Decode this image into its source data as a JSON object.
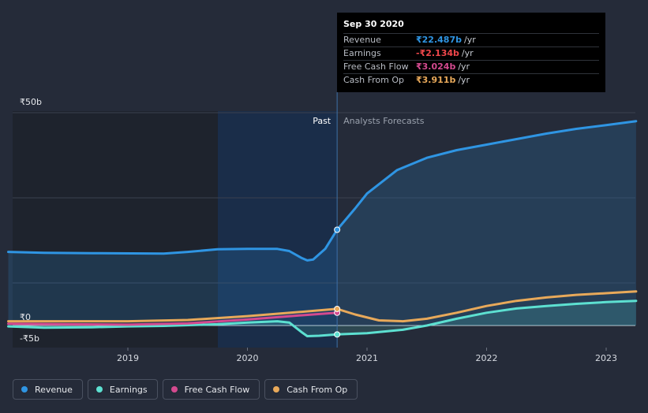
{
  "tooltip": {
    "date": "Sep 30 2020",
    "rows": [
      {
        "name": "Revenue",
        "value": "₹22.487b",
        "unit": "/yr",
        "color": "#2f95e3"
      },
      {
        "name": "Earnings",
        "value": "-₹2.134b",
        "unit": "/yr",
        "color": "#f0474b"
      },
      {
        "name": "Free Cash Flow",
        "value": "₹3.024b",
        "unit": "/yr",
        "color": "#d44a8f"
      },
      {
        "name": "Cash From Op",
        "value": "₹3.911b",
        "unit": "/yr",
        "color": "#e8a95a"
      }
    ]
  },
  "labels": {
    "past": "Past",
    "forecast": "Analysts Forecasts"
  },
  "legend": [
    {
      "name": "Revenue",
      "color": "#2f95e3"
    },
    {
      "name": "Earnings",
      "color": "#5de0d1"
    },
    {
      "name": "Free Cash Flow",
      "color": "#d44a8f"
    },
    {
      "name": "Cash From Op",
      "color": "#e8a95a"
    }
  ],
  "chart_data": {
    "type": "line",
    "ylim": [
      -5,
      50
    ],
    "y_ticks": [
      {
        "value": 50,
        "label": "₹50b"
      },
      {
        "value": 0,
        "label": "₹0"
      },
      {
        "value": -5,
        "label": "-₹5b"
      }
    ],
    "x_ticks": [
      {
        "value": 2019,
        "label": "2019"
      },
      {
        "value": 2020,
        "label": "2020"
      },
      {
        "value": 2021,
        "label": "2021"
      },
      {
        "value": 2022,
        "label": "2022"
      },
      {
        "value": 2023,
        "label": "2023"
      }
    ],
    "xlim": [
      2017.8,
      2023.25
    ],
    "forecast_start": 2020.75,
    "series": [
      {
        "name": "Revenue",
        "color": "#2f95e3",
        "fill": true,
        "points": [
          [
            2018.0,
            17.3
          ],
          [
            2018.3,
            17.1
          ],
          [
            2018.7,
            17.0
          ],
          [
            2019.3,
            16.9
          ],
          [
            2019.5,
            17.3
          ],
          [
            2019.75,
            17.9
          ],
          [
            2020.0,
            18.0
          ],
          [
            2020.25,
            18.0
          ],
          [
            2020.35,
            17.5
          ],
          [
            2020.45,
            15.9
          ],
          [
            2020.5,
            15.3
          ],
          [
            2020.55,
            15.5
          ],
          [
            2020.65,
            18.0
          ],
          [
            2020.75,
            22.5
          ],
          [
            2020.9,
            27.5
          ],
          [
            2021.0,
            31.0
          ],
          [
            2021.25,
            36.5
          ],
          [
            2021.5,
            39.4
          ],
          [
            2021.75,
            41.2
          ],
          [
            2022.0,
            42.5
          ],
          [
            2022.25,
            43.8
          ],
          [
            2022.5,
            45.1
          ],
          [
            2022.75,
            46.2
          ],
          [
            2023.0,
            47.1
          ],
          [
            2023.25,
            48.0
          ]
        ]
      },
      {
        "name": "Earnings",
        "color": "#5de0d1",
        "fill": true,
        "points": [
          [
            2018.0,
            -0.2
          ],
          [
            2018.3,
            -0.5
          ],
          [
            2018.7,
            -0.4
          ],
          [
            2019.0,
            -0.2
          ],
          [
            2019.3,
            -0.1
          ],
          [
            2019.75,
            0.3
          ],
          [
            2020.0,
            0.7
          ],
          [
            2020.25,
            1.0
          ],
          [
            2020.35,
            0.7
          ],
          [
            2020.45,
            -1.5
          ],
          [
            2020.5,
            -2.5
          ],
          [
            2020.6,
            -2.4
          ],
          [
            2020.75,
            -2.1
          ],
          [
            2021.0,
            -1.8
          ],
          [
            2021.3,
            -1.0
          ],
          [
            2021.5,
            0.0
          ],
          [
            2021.75,
            1.6
          ],
          [
            2022.0,
            3.0
          ],
          [
            2022.25,
            4.0
          ],
          [
            2022.5,
            4.6
          ],
          [
            2022.75,
            5.1
          ],
          [
            2023.0,
            5.5
          ],
          [
            2023.25,
            5.8
          ]
        ]
      },
      {
        "name": "Free Cash Flow",
        "color": "#d44a8f",
        "fill": false,
        "points": [
          [
            2018.0,
            0.4
          ],
          [
            2018.5,
            0.3
          ],
          [
            2019.0,
            0.2
          ],
          [
            2019.5,
            0.5
          ],
          [
            2020.0,
            1.4
          ],
          [
            2020.4,
            2.3
          ],
          [
            2020.75,
            3.0
          ]
        ]
      },
      {
        "name": "Cash From Op",
        "color": "#e8a95a",
        "fill": false,
        "points": [
          [
            2018.0,
            1.0
          ],
          [
            2018.5,
            1.0
          ],
          [
            2019.0,
            1.0
          ],
          [
            2019.5,
            1.3
          ],
          [
            2020.0,
            2.2
          ],
          [
            2020.4,
            3.1
          ],
          [
            2020.75,
            3.9
          ],
          [
            2020.9,
            2.6
          ],
          [
            2021.1,
            1.2
          ],
          [
            2021.3,
            1.0
          ],
          [
            2021.5,
            1.6
          ],
          [
            2021.75,
            3.0
          ],
          [
            2022.0,
            4.6
          ],
          [
            2022.25,
            5.8
          ],
          [
            2022.5,
            6.6
          ],
          [
            2022.75,
            7.2
          ],
          [
            2023.0,
            7.6
          ],
          [
            2023.25,
            8.0
          ]
        ]
      }
    ]
  }
}
